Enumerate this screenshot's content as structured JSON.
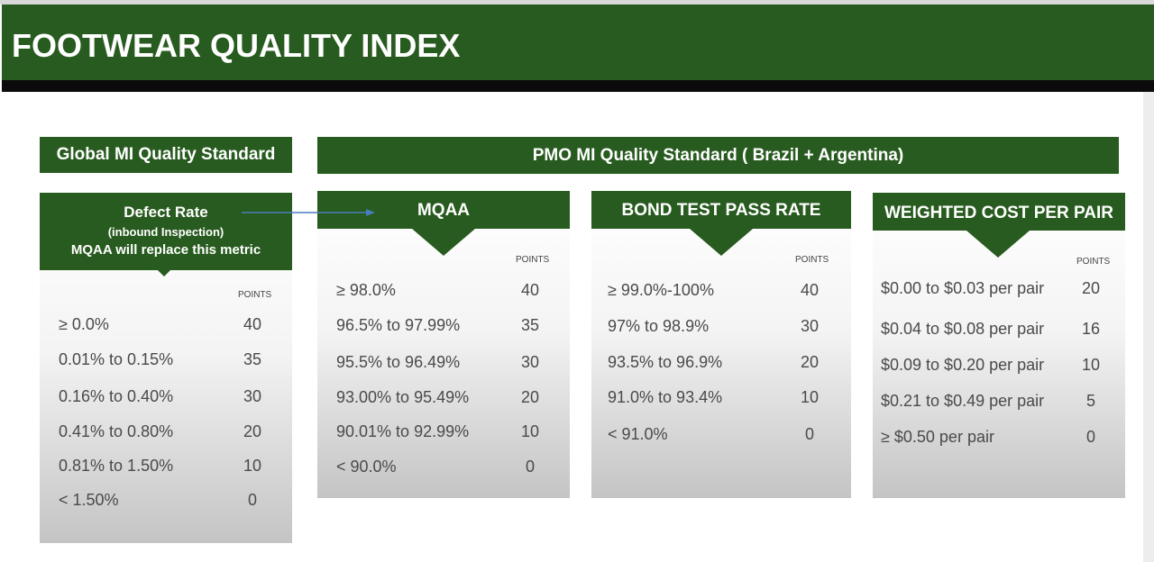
{
  "title": "FOOTWEAR QUALITY INDEX",
  "global_band": "Global MI Quality Standard",
  "pmo_band": "PMO MI Quality Standard ( Brazil + Argentina)",
  "points_header": "POINTS",
  "defect": {
    "title": "Defect Rate",
    "subtitle": "(inbound Inspection)",
    "note": "MQAA will replace this metric",
    "rows": [
      {
        "label": "≥ 0.0%",
        "points": "40"
      },
      {
        "label": "0.01% to 0.15%",
        "points": "35"
      },
      {
        "label": "0.16% to 0.40%",
        "points": "30"
      },
      {
        "label": "0.41% to 0.80%",
        "points": "20"
      },
      {
        "label": "0.81% to 1.50%",
        "points": "10"
      },
      {
        "label": "< 1.50%",
        "points": "0"
      }
    ]
  },
  "mqaa": {
    "title": "MQAA",
    "rows": [
      {
        "label": "≥ 98.0%",
        "points": "40"
      },
      {
        "label": "96.5% to 97.99%",
        "points": "35"
      },
      {
        "label": "95.5% to 96.49%",
        "points": "30"
      },
      {
        "label": "93.00% to 95.49%",
        "points": "20"
      },
      {
        "label": "90.01% to 92.99%",
        "points": "10"
      },
      {
        "label": "< 90.0%",
        "points": "0"
      }
    ]
  },
  "bond": {
    "title": "BOND TEST PASS RATE",
    "rows": [
      {
        "label": "≥ 99.0%-100%",
        "points": "40"
      },
      {
        "label": "97% to 98.9%",
        "points": "30"
      },
      {
        "label": "93.5% to 96.9%",
        "points": "20"
      },
      {
        "label": "91.0% to 93.4%",
        "points": "10"
      },
      {
        "label": "< 91.0%",
        "points": "0"
      }
    ]
  },
  "cost": {
    "title": "WEIGHTED COST PER PAIR",
    "rows": [
      {
        "label": "$0.00 to $0.03 per pair",
        "points": "20"
      },
      {
        "label": "$0.04 to $0.08  per pair",
        "points": "16"
      },
      {
        "label": "$0.09 to $0.20  per pair",
        "points": "10"
      },
      {
        "label": "$0.21 to $0.49 per pair",
        "points": "5"
      },
      {
        "label": "≥ $0.50 per pair",
        "points": "0"
      }
    ]
  },
  "colors": {
    "header_green": "#285b1f",
    "text_gray": "#4a4a4a"
  }
}
